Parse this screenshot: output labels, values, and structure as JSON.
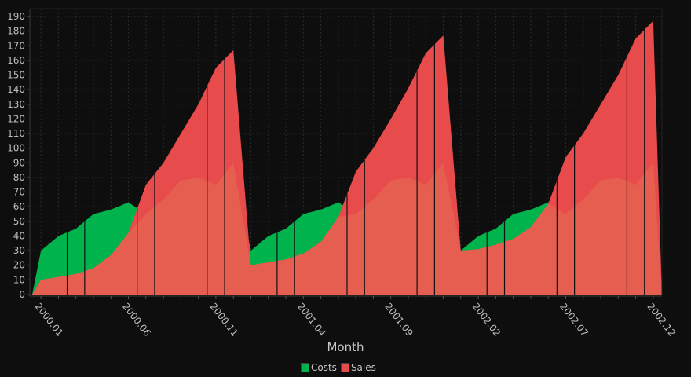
{
  "chart_data": {
    "type": "area",
    "title": "",
    "xlabel": "Month",
    "ylabel": "",
    "ylim": [
      0,
      190
    ],
    "y_ticks": [
      0,
      10,
      20,
      30,
      40,
      50,
      60,
      70,
      80,
      90,
      100,
      110,
      120,
      130,
      140,
      150,
      160,
      170,
      180,
      190
    ],
    "grid": true,
    "legend_placement": "bottom",
    "categories": [
      "2000.01",
      "2000.02",
      "2000.03",
      "2000.04",
      "2000.05",
      "2000.06",
      "2000.07",
      "2000.08",
      "2000.09",
      "2000.10",
      "2000.11",
      "2000.12",
      "2001.01",
      "2001.02",
      "2001.03",
      "2001.04",
      "2001.05",
      "2001.06",
      "2001.07",
      "2001.08",
      "2001.09",
      "2001.10",
      "2001.11",
      "2001.12",
      "2002.01",
      "2002.02",
      "2002.03",
      "2002.04",
      "2002.05",
      "2002.06",
      "2002.07",
      "2002.08",
      "2002.09",
      "2002.10",
      "2002.11",
      "2002.12"
    ],
    "x_tick_labels": [
      "2000.01",
      "2000.06",
      "2000.11",
      "2001.04",
      "2001.09",
      "2002.02",
      "2002.07",
      "2002.12"
    ],
    "series": [
      {
        "name": "Costs",
        "color": "#00b34c",
        "values": [
          30,
          40,
          45,
          55,
          58,
          63,
          55,
          65,
          78,
          80,
          75,
          90,
          30,
          40,
          45,
          55,
          58,
          63,
          55,
          65,
          78,
          80,
          75,
          90,
          30,
          40,
          45,
          55,
          58,
          63,
          55,
          65,
          78,
          80,
          75,
          90
        ]
      },
      {
        "name": "Sales",
        "color": "#e84b4b",
        "values": [
          10,
          12,
          14,
          18,
          27,
          42,
          75,
          90,
          110,
          130,
          155,
          167,
          20,
          22,
          24,
          28,
          36,
          53,
          84,
          100,
          120,
          141,
          165,
          177,
          30,
          31,
          34,
          38,
          46,
          62,
          94,
          110,
          130,
          150,
          175,
          187
        ]
      }
    ],
    "overlap_color": "#e55e50"
  }
}
